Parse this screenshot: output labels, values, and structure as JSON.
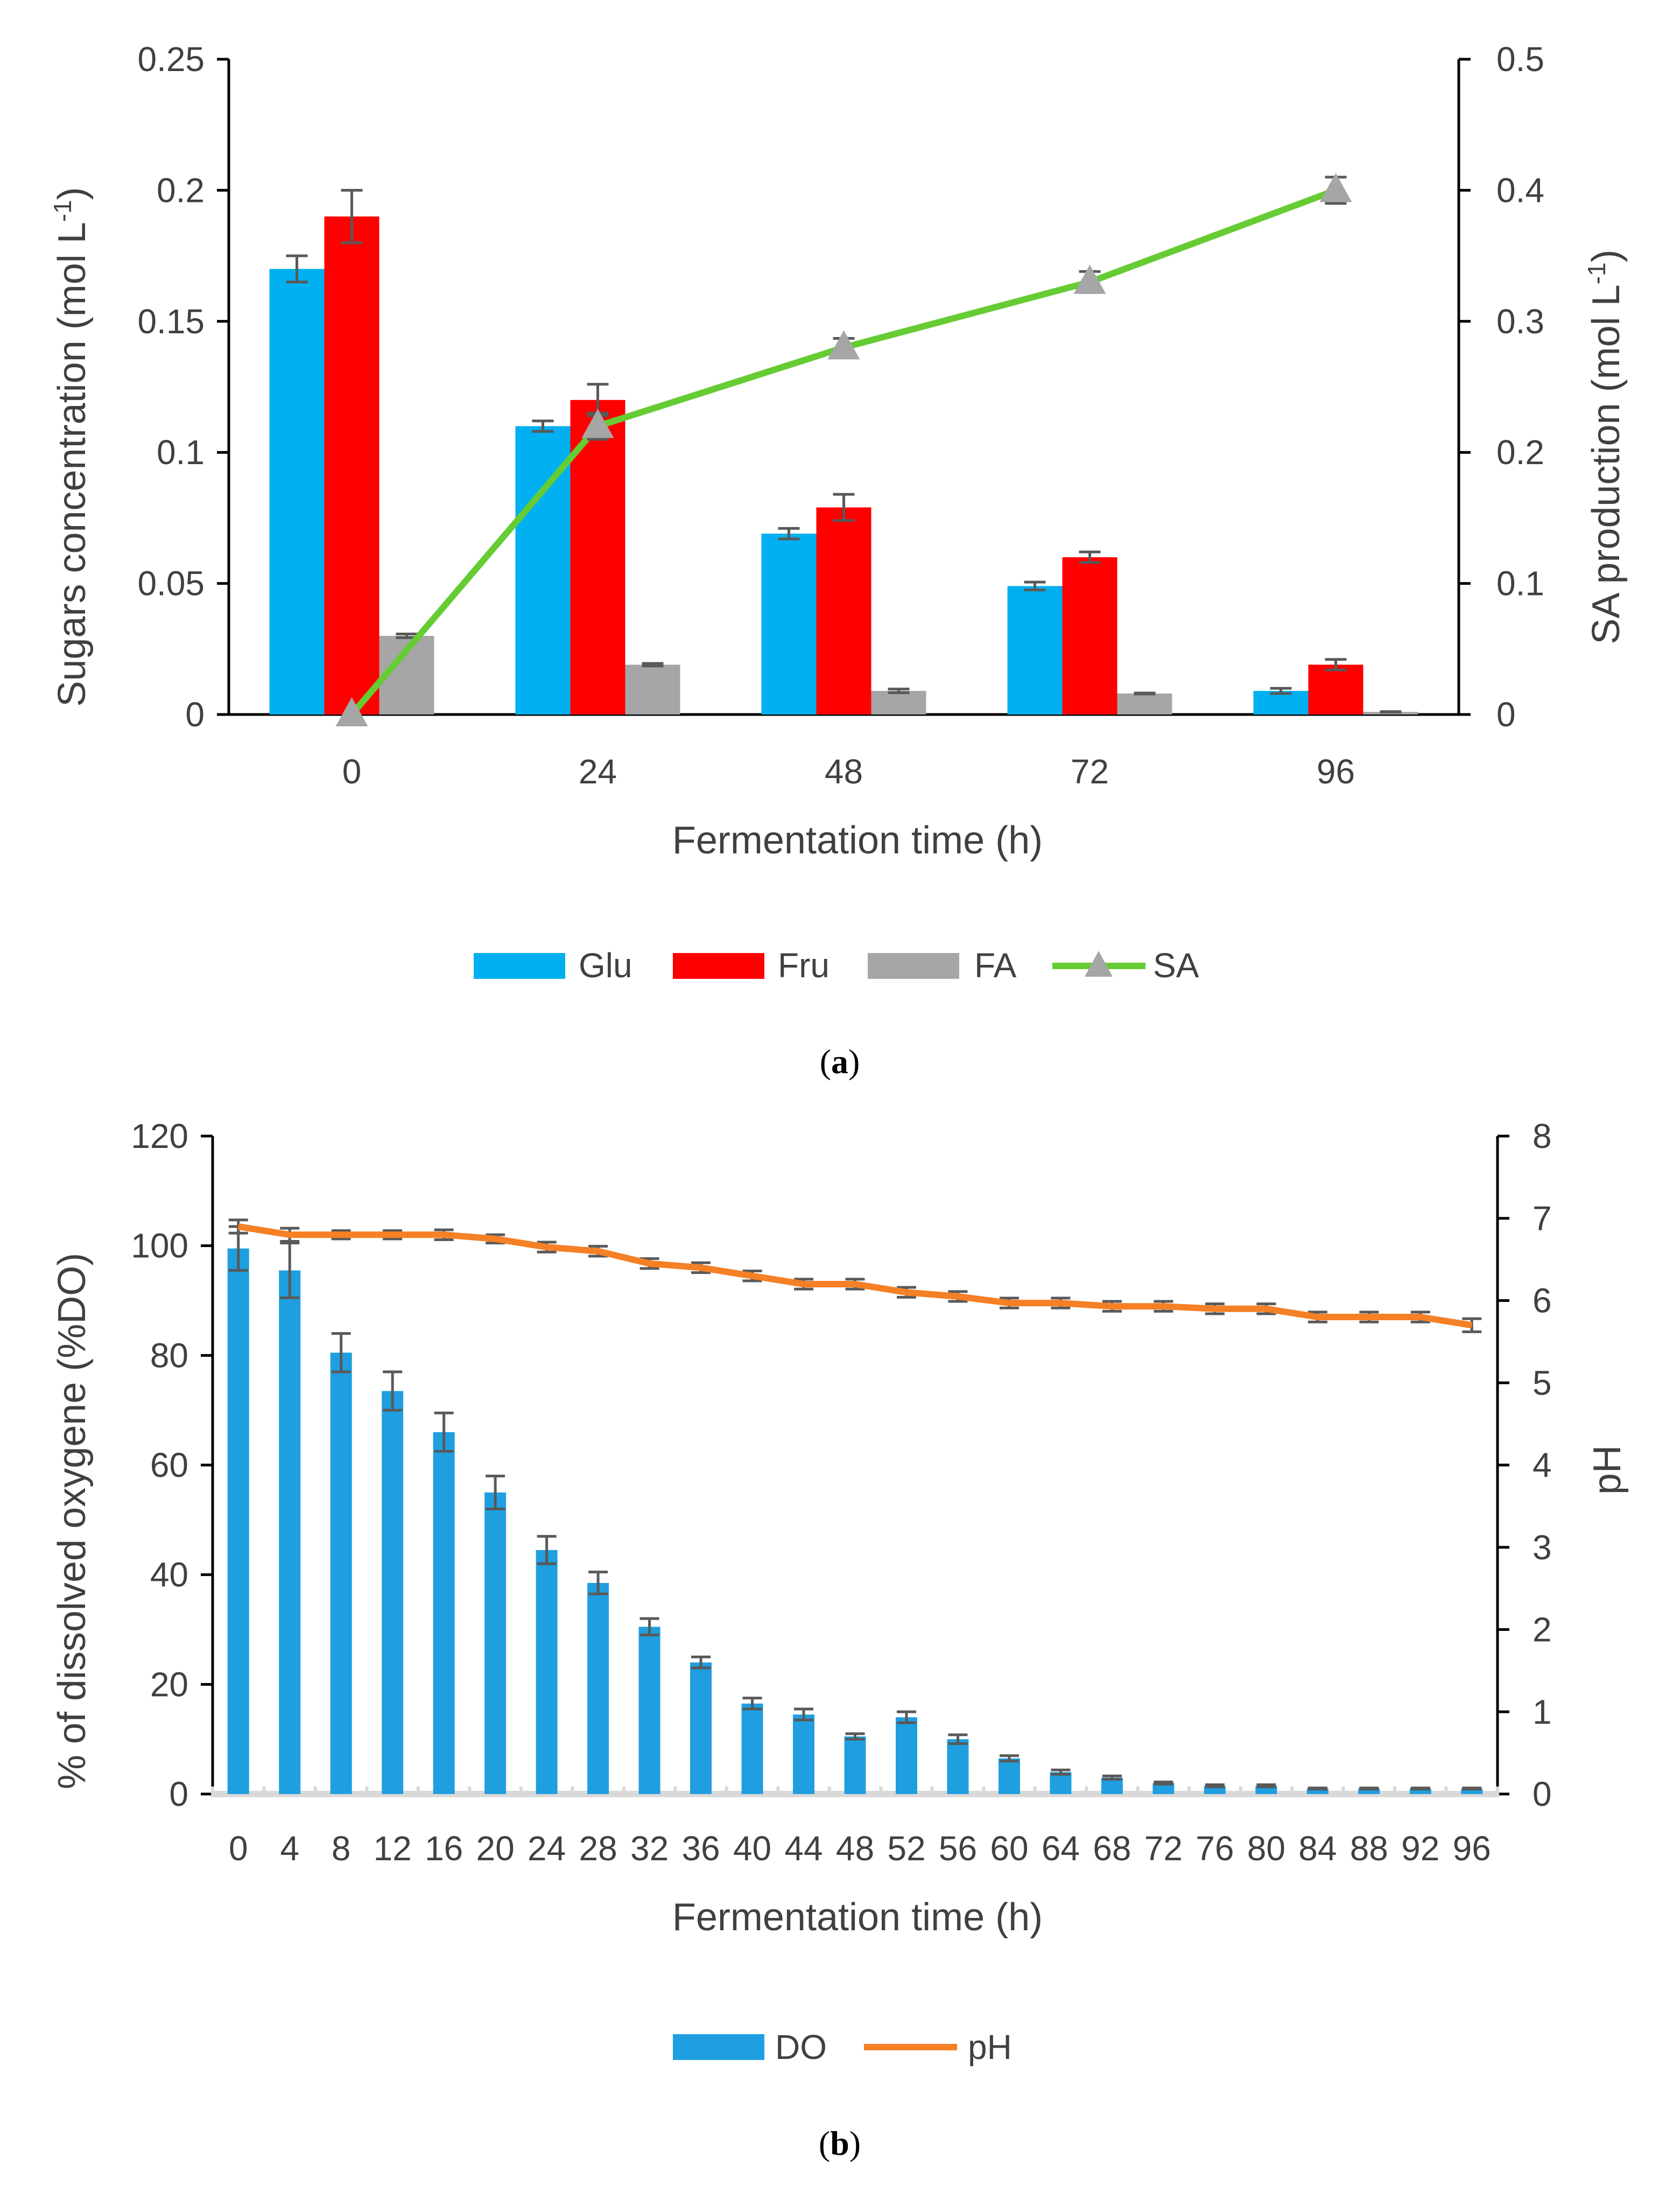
{
  "chart_data": [
    {
      "type": "bar",
      "panel": "a",
      "caption": "a",
      "categories": [
        "0",
        "24",
        "48",
        "72",
        "96"
      ],
      "xlabel": "Fermentation time (h)",
      "ylabel": "Sugars concentration (mol L",
      "ylabel_sup": "-1",
      "ylabel_close": ")",
      "y2label": "SA production (mol L",
      "y2label_sup": "-1",
      "y2label_close": ")",
      "ylim": [
        0,
        0.25
      ],
      "yticks": [
        "0",
        "0.05",
        "0.1",
        "0.15",
        "0.2",
        "0.25"
      ],
      "y2lim": [
        0,
        0.5
      ],
      "y2ticks": [
        "0",
        "0.1",
        "0.2",
        "0.3",
        "0.4",
        "0.5"
      ],
      "series": [
        {
          "name": "Glu",
          "type": "bar",
          "axis": "left",
          "color": "#00B0F0",
          "values": [
            0.17,
            0.11,
            0.069,
            0.049,
            0.009
          ],
          "errors": [
            0.005,
            0.002,
            0.002,
            0.0015,
            0.001
          ]
        },
        {
          "name": "Fru",
          "type": "bar",
          "axis": "left",
          "color": "#FF0000",
          "values": [
            0.19,
            0.12,
            0.079,
            0.06,
            0.019
          ],
          "errors": [
            0.01,
            0.006,
            0.005,
            0.002,
            0.002
          ]
        },
        {
          "name": "FA",
          "type": "bar",
          "axis": "left",
          "color": "#A6A6A6",
          "values": [
            0.03,
            0.019,
            0.009,
            0.008,
            0.001
          ],
          "errors": [
            0.0007,
            0.0005,
            0.0007,
            0.0002,
            0.0001
          ]
        },
        {
          "name": "SA",
          "type": "line",
          "axis": "right",
          "color": "#66CC33",
          "marker_color": "#A6A6A6",
          "values": [
            0.0,
            0.22,
            0.28,
            0.33,
            0.4
          ],
          "errors": [
            0.0,
            0.01,
            0.007,
            0.008,
            0.01
          ]
        }
      ],
      "legend": [
        "Glu",
        "Fru",
        "FA",
        "SA"
      ],
      "legend_position": "bottom"
    },
    {
      "type": "bar",
      "panel": "b",
      "caption": "b",
      "categories": [
        "0",
        "4",
        "8",
        "12",
        "16",
        "20",
        "24",
        "28",
        "32",
        "36",
        "40",
        "44",
        "48",
        "52",
        "56",
        "60",
        "64",
        "68",
        "72",
        "76",
        "80",
        "84",
        "88",
        "92",
        "96"
      ],
      "xlabel": "Fermentation time (h)",
      "ylabel": "% of dissolved oxygene (%DO)",
      "y2label": "pH",
      "ylim": [
        0,
        120
      ],
      "yticks": [
        "0",
        "20",
        "40",
        "60",
        "80",
        "100",
        "120"
      ],
      "y2lim": [
        0,
        8
      ],
      "y2ticks": [
        "0",
        "1",
        "2",
        "3",
        "4",
        "5",
        "6",
        "7",
        "8"
      ],
      "series": [
        {
          "name": "DO",
          "type": "bar",
          "axis": "left",
          "color": "#1F9FE0",
          "values": [
            99.5,
            95.5,
            80.5,
            73.5,
            66,
            55,
            44.5,
            38.5,
            30.5,
            24,
            16.5,
            14.5,
            10.5,
            14,
            10,
            6.5,
            4,
            3,
            2,
            1.5,
            1.5,
            1,
            1,
            1,
            1
          ],
          "errors": [
            4,
            5,
            3.5,
            3.5,
            3.5,
            3,
            2.5,
            2,
            1.5,
            1,
            1,
            1,
            0.5,
            1,
            0.8,
            0.5,
            0.4,
            0.3,
            0.2,
            0.2,
            0.2,
            0.1,
            0.1,
            0.1,
            0.1
          ]
        },
        {
          "name": "pH",
          "type": "line",
          "axis": "right",
          "color": "#F58025",
          "values": [
            6.9,
            6.8,
            6.8,
            6.8,
            6.8,
            6.75,
            6.65,
            6.6,
            6.45,
            6.4,
            6.3,
            6.2,
            6.2,
            6.1,
            6.05,
            5.97,
            5.97,
            5.93,
            5.93,
            5.9,
            5.9,
            5.8,
            5.8,
            5.8,
            5.7
          ],
          "errors": [
            0.08,
            0.08,
            0.05,
            0.05,
            0.06,
            0.05,
            0.06,
            0.06,
            0.06,
            0.06,
            0.06,
            0.06,
            0.06,
            0.06,
            0.06,
            0.06,
            0.06,
            0.06,
            0.06,
            0.06,
            0.06,
            0.06,
            0.06,
            0.06,
            0.08
          ]
        }
      ],
      "legend": [
        "DO",
        "pH"
      ],
      "legend_position": "bottom"
    }
  ]
}
